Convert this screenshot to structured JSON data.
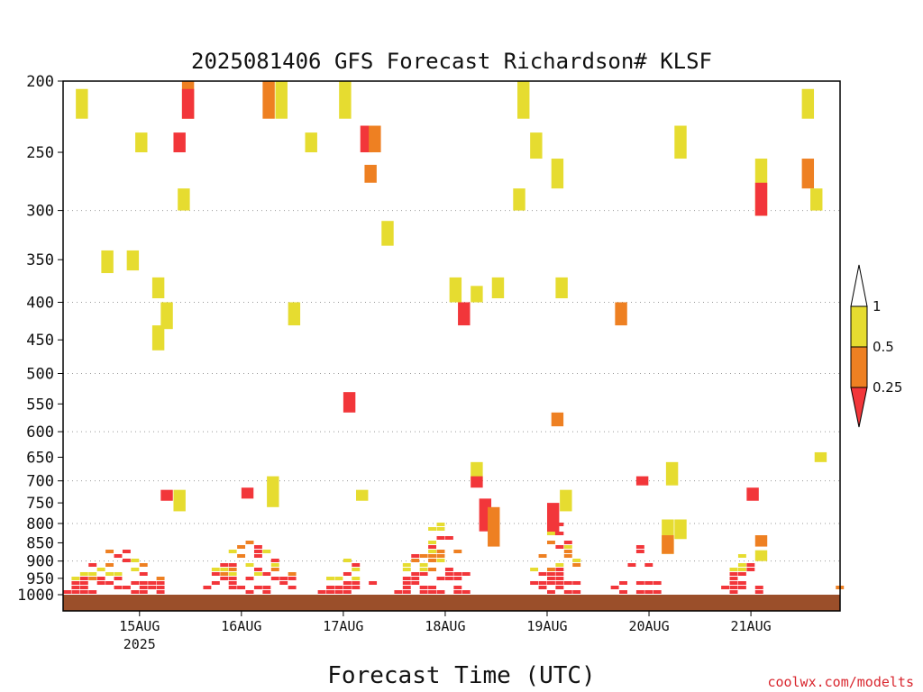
{
  "chart_data": {
    "type": "heatmap",
    "title": "2025081406 GFS Forecast Richardson# KLSF",
    "xlabel": "Forecast Time (UTC)",
    "ylabel": "",
    "credit": "coolwx.com/modelts",
    "y_axis": {
      "scale": "log",
      "ylim": [
        1000,
        200
      ],
      "inverted": true,
      "ticks": [
        "200",
        "250",
        "300",
        "350",
        "400",
        "450",
        "500",
        "550",
        "600",
        "650",
        "700",
        "750",
        "800",
        "850",
        "900",
        "950",
        "1000"
      ],
      "dotted_gridlines_at": [
        300,
        400,
        500,
        600,
        700,
        800,
        900
      ]
    },
    "x_axis": {
      "xlim": [
        "2025-08-14T06",
        "2025-08-21T21"
      ],
      "ticks": [
        {
          "at": "2025-08-15T00",
          "label": "15AUG",
          "sublabel": "2025"
        },
        {
          "at": "2025-08-16T00",
          "label": "16AUG"
        },
        {
          "at": "2025-08-17T00",
          "label": "17AUG"
        },
        {
          "at": "2025-08-18T00",
          "label": "18AUG"
        },
        {
          "at": "2025-08-19T00",
          "label": "19AUG"
        },
        {
          "at": "2025-08-20T00",
          "label": "20AUG"
        },
        {
          "at": "2025-08-21T00",
          "label": "21AUG"
        }
      ]
    },
    "legend": {
      "placement": "right",
      "levels": [
        "0.25",
        "0.5",
        "1"
      ],
      "colors": {
        "lt_0_25": "#f2363a",
        "0_25_to_0_5": "#ee8022",
        "0_5_to_1": "#e6dc30",
        "gt_1": "#ffffff"
      }
    },
    "ground_color": "#9b4f2a",
    "cells": [
      {
        "t": "2025-08-14T09",
        "p": [
          205,
          225
        ],
        "cat": "y"
      },
      {
        "t": "2025-08-14T15",
        "p": [
          340,
          365
        ],
        "cat": "y"
      },
      {
        "t": "2025-08-14T21",
        "p": [
          340,
          362
        ],
        "cat": "y"
      },
      {
        "t": "2025-08-14T23",
        "p": [
          235,
          250
        ],
        "cat": "y"
      },
      {
        "t": "2025-08-15T03",
        "p": [
          370,
          395
        ],
        "cat": "y"
      },
      {
        "t": "2025-08-15T05",
        "p": [
          400,
          435
        ],
        "cat": "y"
      },
      {
        "t": "2025-08-15T03",
        "p": [
          430,
          465
        ],
        "cat": "y"
      },
      {
        "t": "2025-08-15T10",
        "p": [
          200,
          225
        ],
        "cat": "o"
      },
      {
        "t": "2025-08-15T10",
        "p": [
          205,
          225
        ],
        "cat": "r"
      },
      {
        "t": "2025-08-15T08",
        "p": [
          235,
          250
        ],
        "cat": "r"
      },
      {
        "t": "2025-08-15T09",
        "p": [
          280,
          300
        ],
        "cat": "y"
      },
      {
        "t": "2025-08-16T05",
        "p": [
          200,
          225
        ],
        "cat": "o"
      },
      {
        "t": "2025-08-16T08",
        "p": [
          200,
          225
        ],
        "cat": "y"
      },
      {
        "t": "2025-08-16T11",
        "p": [
          400,
          430
        ],
        "cat": "y"
      },
      {
        "t": "2025-08-16T15",
        "p": [
          235,
          250
        ],
        "cat": "y"
      },
      {
        "t": "2025-08-16T23",
        "p": [
          200,
          225
        ],
        "cat": "y"
      },
      {
        "t": "2025-08-17T04",
        "p": [
          230,
          250
        ],
        "cat": "r"
      },
      {
        "t": "2025-08-17T06",
        "p": [
          230,
          250
        ],
        "cat": "o"
      },
      {
        "t": "2025-08-17T05",
        "p": [
          260,
          275
        ],
        "cat": "o"
      },
      {
        "t": "2025-08-17T09",
        "p": [
          310,
          335
        ],
        "cat": "y"
      },
      {
        "t": "2025-08-17T00",
        "p": [
          530,
          565
        ],
        "cat": "r"
      },
      {
        "t": "2025-08-18T01",
        "p": [
          370,
          400
        ],
        "cat": "y"
      },
      {
        "t": "2025-08-18T03",
        "p": [
          400,
          430
        ],
        "cat": "r"
      },
      {
        "t": "2025-08-18T06",
        "p": [
          380,
          400
        ],
        "cat": "y"
      },
      {
        "t": "2025-08-18T11",
        "p": [
          370,
          395
        ],
        "cat": "y"
      },
      {
        "t": "2025-08-18T17",
        "p": [
          200,
          225
        ],
        "cat": "y"
      },
      {
        "t": "2025-08-18T16",
        "p": [
          280,
          300
        ],
        "cat": "y"
      },
      {
        "t": "2025-08-18T20",
        "p": [
          235,
          255
        ],
        "cat": "y"
      },
      {
        "t": "2025-08-19T01",
        "p": [
          255,
          280
        ],
        "cat": "y"
      },
      {
        "t": "2025-08-19T02",
        "p": [
          370,
          395
        ],
        "cat": "y"
      },
      {
        "t": "2025-08-19T01",
        "p": [
          565,
          590
        ],
        "cat": "o"
      },
      {
        "t": "2025-08-19T16",
        "p": [
          400,
          430
        ],
        "cat": "o"
      },
      {
        "t": "2025-08-20T06",
        "p": [
          230,
          255
        ],
        "cat": "y"
      },
      {
        "t": "2025-08-21T01",
        "p": [
          255,
          305
        ],
        "cat": "y"
      },
      {
        "t": "2025-08-21T01",
        "p": [
          275,
          305
        ],
        "cat": "r"
      },
      {
        "t": "2025-08-21T12",
        "p": [
          205,
          225
        ],
        "cat": "y"
      },
      {
        "t": "2025-08-21T12",
        "p": [
          255,
          280
        ],
        "cat": "o"
      },
      {
        "t": "2025-08-21T14",
        "p": [
          280,
          300
        ],
        "cat": "y"
      },
      {
        "t": "2025-08-21T15",
        "p": [
          640,
          660
        ],
        "cat": "y"
      },
      {
        "t": "2025-08-18T06",
        "p": [
          660,
          700
        ],
        "cat": "y"
      },
      {
        "t": "2025-08-18T06",
        "p": [
          690,
          715
        ],
        "cat": "r"
      },
      {
        "t": "2025-08-20T04",
        "p": [
          660,
          710
        ],
        "cat": "y"
      },
      {
        "t": "2025-08-19T21",
        "p": [
          690,
          710
        ],
        "cat": "r"
      },
      {
        "t": "2025-08-20T23",
        "p": [
          715,
          745
        ],
        "cat": "r"
      },
      {
        "t": "2025-08-15T05",
        "p": [
          720,
          745
        ],
        "cat": "r"
      },
      {
        "t": "2025-08-15T08",
        "p": [
          720,
          770
        ],
        "cat": "y"
      },
      {
        "t": "2025-08-16T00",
        "p": [
          715,
          740
        ],
        "cat": "r"
      },
      {
        "t": "2025-08-16T06",
        "p": [
          690,
          760
        ],
        "cat": "y"
      },
      {
        "t": "2025-08-17T03",
        "p": [
          720,
          745
        ],
        "cat": "y"
      },
      {
        "t": "2025-08-18T08",
        "p": [
          740,
          820
        ],
        "cat": "r"
      },
      {
        "t": "2025-08-18T10",
        "p": [
          760,
          860
        ],
        "cat": "o"
      },
      {
        "t": "2025-08-19T00",
        "p": [
          750,
          830
        ],
        "cat": "r"
      },
      {
        "t": "2025-08-19T03",
        "p": [
          720,
          770
        ],
        "cat": "y"
      },
      {
        "t": "2025-08-20T03",
        "p": [
          790,
          880
        ],
        "cat": "y"
      },
      {
        "t": "2025-08-20T03",
        "p": [
          830,
          880
        ],
        "cat": "o"
      },
      {
        "t": "2025-08-20T06",
        "p": [
          790,
          840
        ],
        "cat": "y"
      },
      {
        "t": "2025-08-21T01",
        "p": [
          830,
          860
        ],
        "cat": "o"
      },
      {
        "t": "2025-08-21T01",
        "p": [
          870,
          900
        ],
        "cat": "y"
      }
    ],
    "boundary_layer": [
      {
        "t0": "2025-08-14T06",
        "t1": "2025-08-15T06",
        "p_top": 850,
        "mix": [
          "y",
          "r",
          "o"
        ]
      },
      {
        "t0": "2025-08-15T15",
        "t1": "2025-08-16T12",
        "p_top": 800,
        "mix": [
          "r",
          "y",
          "o"
        ]
      },
      {
        "t0": "2025-08-16T18",
        "t1": "2025-08-17T07",
        "p_top": 870,
        "mix": [
          "r",
          "y"
        ]
      },
      {
        "t0": "2025-08-17T12",
        "t1": "2025-08-18T06",
        "p_top": 780,
        "mix": [
          "r",
          "y",
          "o"
        ]
      },
      {
        "t0": "2025-08-18T18",
        "t1": "2025-08-19T08",
        "p_top": 770,
        "mix": [
          "r",
          "o",
          "y"
        ]
      },
      {
        "t0": "2025-08-19T15",
        "t1": "2025-08-20T03",
        "p_top": 850,
        "mix": [
          "r"
        ]
      },
      {
        "t0": "2025-08-20T15",
        "t1": "2025-08-21T03",
        "p_top": 860,
        "mix": [
          "r",
          "y"
        ]
      },
      {
        "t0": "2025-08-21T18",
        "t1": "2025-08-21T21",
        "p_top": 920,
        "mix": [
          "r",
          "o"
        ]
      }
    ]
  }
}
